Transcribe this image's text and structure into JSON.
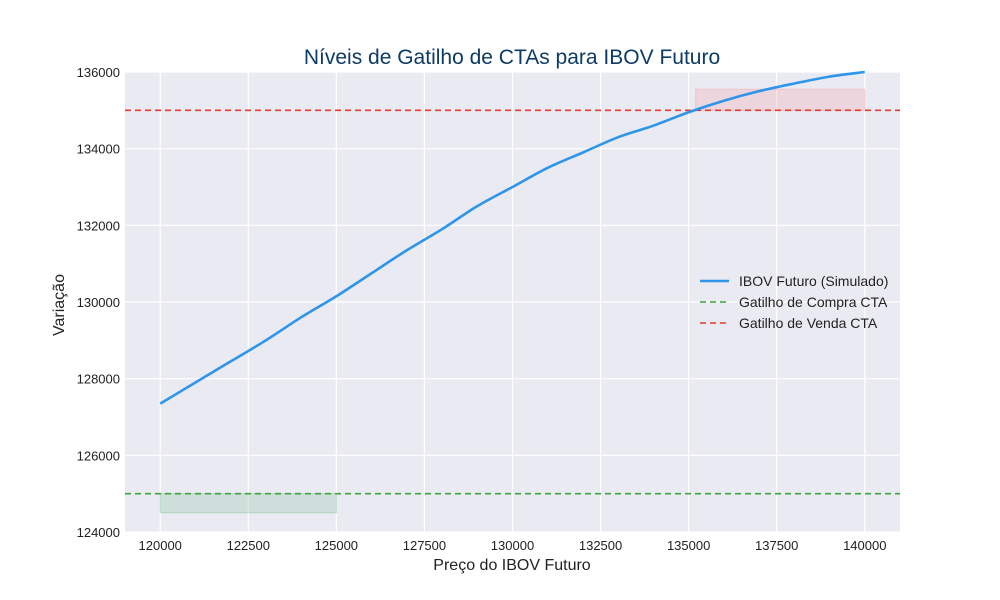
{
  "chart_data": {
    "type": "line",
    "title": "Níveis de Gatilho de CTAs para IBOV Futuro",
    "xlabel": "Preço do IBOV Futuro",
    "ylabel": "Variação",
    "xlim": [
      119000,
      141000
    ],
    "ylim": [
      124000,
      136000
    ],
    "x_ticks": [
      "120000",
      "122500",
      "125000",
      "127500",
      "130000",
      "132500",
      "135000",
      "137500",
      "140000"
    ],
    "y_ticks": [
      "124000",
      "126000",
      "128000",
      "130000",
      "132000",
      "134000",
      "136000"
    ],
    "grid": true,
    "legend_position": "center-right",
    "series": [
      {
        "name": "IBOV Futuro (Simulado)",
        "style": "solid",
        "color": "#2e95e8",
        "x": [
          120000,
          121000,
          122000,
          123000,
          124000,
          125000,
          126000,
          127000,
          128000,
          129000,
          130000,
          131000,
          132000,
          133000,
          134000,
          135000,
          136000,
          137000,
          138000,
          139000,
          140000
        ],
        "y": [
          127350,
          127900,
          128450,
          129000,
          129600,
          130150,
          130750,
          131350,
          131900,
          132500,
          133000,
          133500,
          133900,
          134300,
          134600,
          134950,
          135250,
          135500,
          135700,
          135880,
          136000
        ]
      }
    ],
    "reference_lines": [
      {
        "name": "Gatilho de Compra CTA",
        "y": 125000,
        "style": "dashed",
        "color": "#3ba53b"
      },
      {
        "name": "Gatilho de Venda CTA",
        "y": 135000,
        "style": "dashed",
        "color": "#e8392f"
      }
    ],
    "shaded_regions": [
      {
        "x": [
          120000,
          125000
        ],
        "y": [
          124500,
          125000
        ],
        "color": "#8fc4a3"
      },
      {
        "x": [
          135200,
          140000
        ],
        "y": [
          135000,
          135550
        ],
        "color": "#f2a6ad"
      }
    ],
    "colors": {
      "background": "#eaeaf2",
      "grid": "#ffffff"
    }
  }
}
